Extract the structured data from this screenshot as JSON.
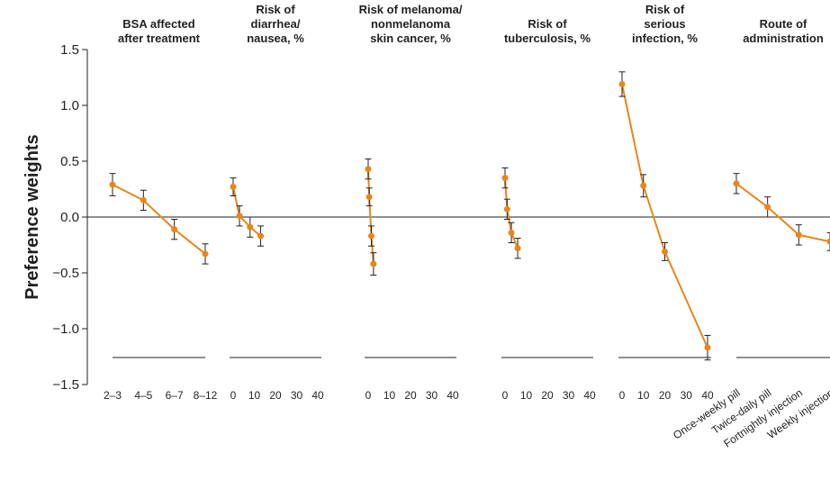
{
  "chart_data": {
    "type": "line",
    "ylabel": "Preference weights",
    "ylim": [
      -1.5,
      1.5
    ],
    "yticks": [
      "1.5",
      "1.0",
      "0.5",
      "0.0",
      "−0.5",
      "−1.0",
      "−1.5"
    ],
    "ytick_values": [
      1.5,
      1.0,
      0.5,
      0.0,
      -0.5,
      -1.0,
      -1.5
    ],
    "zero_line": true,
    "line_color": "#e8861a",
    "errorbar_color": "#231f20",
    "panels": [
      {
        "title_lines": [
          "BSA affected",
          "after treatment"
        ],
        "axis_kind": "categorical",
        "categories": [
          "2–3",
          "4–5",
          "6–7",
          "8–12"
        ],
        "values": [
          0.29,
          0.15,
          -0.11,
          -0.33
        ],
        "errors": [
          0.1,
          0.09,
          0.09,
          0.09
        ]
      },
      {
        "title_lines": [
          "Risk of",
          "diarrhea/",
          "nausea, %"
        ],
        "axis_kind": "numeric",
        "xticks": [
          0,
          10,
          20,
          30,
          40
        ],
        "x": [
          0,
          3,
          8,
          13
        ],
        "values": [
          0.27,
          0.01,
          -0.09,
          -0.17
        ],
        "errors": [
          0.08,
          0.09,
          0.09,
          0.09
        ]
      },
      {
        "title_lines": [
          "Risk of melanoma/",
          "nonmelanoma",
          "skin cancer, %"
        ],
        "axis_kind": "numeric",
        "xticks": [
          0,
          10,
          20,
          30,
          40
        ],
        "x": [
          0,
          0.5,
          1.5,
          2.5
        ],
        "values": [
          0.43,
          0.18,
          -0.17,
          -0.42
        ],
        "errors": [
          0.09,
          0.08,
          0.09,
          0.1
        ]
      },
      {
        "title_lines": [
          "Risk of",
          "tuberculosis, %"
        ],
        "axis_kind": "numeric",
        "xticks": [
          0,
          10,
          20,
          30,
          40
        ],
        "x": [
          0,
          1,
          3,
          6
        ],
        "values": [
          0.35,
          0.07,
          -0.14,
          -0.28
        ],
        "errors": [
          0.09,
          0.09,
          0.09,
          0.09
        ]
      },
      {
        "title_lines": [
          "Risk of",
          "serious",
          "infection, %"
        ],
        "axis_kind": "numeric",
        "xticks": [
          0,
          10,
          20,
          30,
          40
        ],
        "x": [
          0,
          10,
          20,
          40
        ],
        "values": [
          1.19,
          0.28,
          -0.31,
          -1.17
        ],
        "errors": [
          0.11,
          0.1,
          0.08,
          0.11
        ]
      },
      {
        "title_lines": [
          "Route of",
          "administration"
        ],
        "axis_kind": "categorical",
        "categories": [
          "Once-weekly pill",
          "Twice-daily pill",
          "Fortnightly injection",
          "Weekly injection"
        ],
        "values": [
          0.3,
          0.09,
          -0.16,
          -0.22
        ],
        "errors": [
          0.09,
          0.09,
          0.09,
          0.08
        ]
      }
    ]
  }
}
